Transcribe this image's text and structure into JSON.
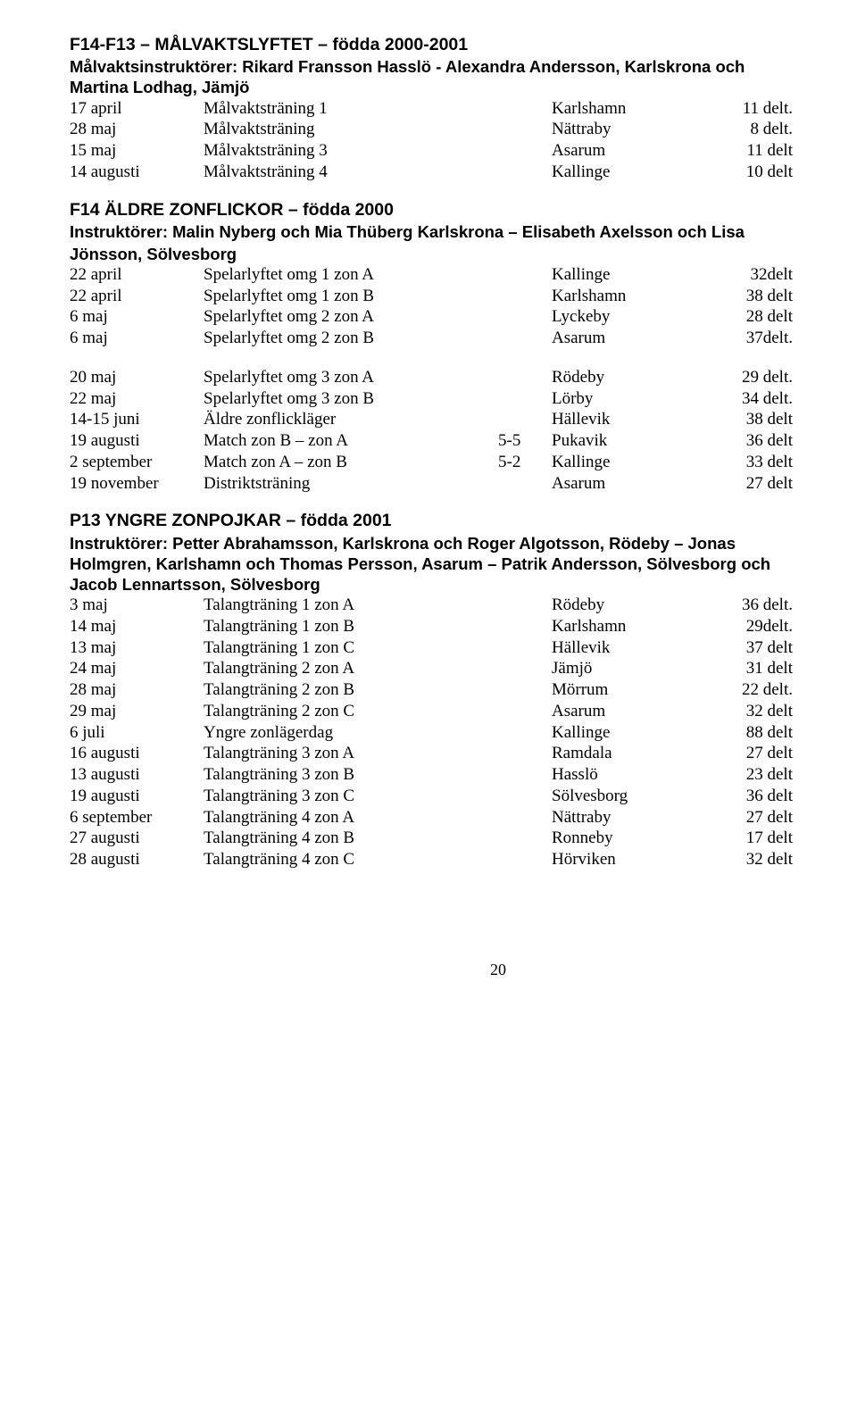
{
  "s1": {
    "title": "F14-F13 – MÅLVAKTSLYFTET – födda 2000-2001",
    "subtitle1": "Målvaktsinstruktörer: Rikard Fransson Hasslö - Alexandra Andersson, Karlskrona och",
    "subtitle2": "Martina Lodhag, Jämjö",
    "rows": [
      {
        "d": "17 april",
        "a": "Målvaktsträning 1",
        "s": "",
        "l": "Karlshamn",
        "r": "11 delt."
      },
      {
        "d": "28 maj",
        "a": "Målvaktsträning",
        "s": "",
        "l": "Nättraby",
        "r": "8  delt."
      },
      {
        "d": "15 maj",
        "a": "Målvaktsträning 3",
        "s": "",
        "l": "Asarum",
        "r": "11 delt"
      },
      {
        "d": "14 augusti",
        "a": "Målvaktsträning 4",
        "s": "",
        "l": "Kallinge",
        "r": "10 delt"
      }
    ]
  },
  "s2": {
    "title": "F14 ÄLDRE ZONFLICKOR – födda 2000",
    "subline1": "Instruktörer: Malin Nyberg  och Mia Thüberg Karlskrona  – Elisabeth Axelsson och Lisa",
    "subline2": "Jönsson, Sölvesborg",
    "rowsA": [
      {
        "d": "22 april",
        "a": "Spelarlyftet omg 1 zon A",
        "l": "Kallinge",
        "r": "32delt"
      },
      {
        "d": "22 april",
        "a": "Spelarlyftet omg 1 zon B",
        "l": "Karlshamn",
        "r": "38 delt"
      },
      {
        "d": "6 maj",
        "a": "Spelarlyftet omg 2 zon A",
        "l": "Lyckeby",
        "r": "28 delt"
      },
      {
        "d": "6 maj",
        "a": "Spelarlyftet omg 2 zon B",
        "l": "Asarum",
        "r": "37delt."
      }
    ],
    "rowsB": [
      {
        "d": "20 maj",
        "a": "Spelarlyftet omg 3 zon A",
        "s": "",
        "l": "Rödeby",
        "r": "29 delt."
      },
      {
        "d": "22 maj",
        "a": "Spelarlyftet omg 3 zon B",
        "s": "",
        "l": "Lörby",
        "r": "34 delt."
      },
      {
        "d": "14-15 juni",
        "a": "Äldre zonflickläger",
        "s": "",
        "l": "Hällevik",
        "r": "38 delt"
      },
      {
        "d": "19 augusti",
        "a": "Match zon B – zon A",
        "s": "5-5",
        "l": "Pukavik",
        "r": "36 delt"
      },
      {
        "d": "2 september",
        "a": "Match zon A – zon B",
        "s": "5-2",
        "l": "Kallinge",
        "r": "33  delt"
      },
      {
        "d": "19 november",
        "a": "Distriktsträning",
        "s": "",
        "l": "Asarum",
        "r": "27 delt"
      }
    ]
  },
  "s3": {
    "title": "P13 YNGRE ZONPOJKAR – födda 2001",
    "subline1": "Instruktörer: Petter Abrahamsson, Karlskrona och Roger Algotsson, Rödeby – Jonas",
    "subline2": "Holmgren, Karlshamn och Thomas Persson, Asarum – Patrik Andersson, Sölvesborg och",
    "subline3": "Jacob Lennartsson, Sölvesborg",
    "rows": [
      {
        "d": "3 maj",
        "a": "Talangträning 1 zon A",
        "l": "Rödeby",
        "r": "36 delt."
      },
      {
        "d": "14 maj",
        "a": "Talangträning 1 zon B",
        "l": "Karlshamn",
        "r": "29delt."
      },
      {
        "d": "13 maj",
        "a": "Talangträning 1 zon C",
        "l": "Hällevik",
        "r": "37 delt"
      },
      {
        "d": "24 maj",
        "a": "Talangträning 2 zon A",
        "l": "Jämjö",
        "r": "31 delt"
      },
      {
        "d": "28 maj",
        "a": "Talangträning 2 zon B",
        "l": "Mörrum",
        "r": "22 delt."
      },
      {
        "d": "29 maj",
        "a": "Talangträning 2 zon C",
        "l": "Asarum",
        "r": "32 delt"
      },
      {
        "d": "6 juli",
        "a": "Yngre zonlägerdag",
        "l": "Kallinge",
        "r": "88 delt"
      },
      {
        "d": "16 augusti",
        "a": "Talangträning 3 zon A",
        "l": "Ramdala",
        "r": "27 delt"
      },
      {
        "d": "13 augusti",
        "a": "Talangträning 3 zon B",
        "l": "Hasslö",
        "r": "23 delt"
      },
      {
        "d": "19 augusti",
        "a": "Talangträning 3 zon C",
        "l": "Sölvesborg",
        "r": "36 delt"
      },
      {
        "d": "6 september",
        "a": "Talangträning 4 zon A",
        "l": "Nättraby",
        "r": "27 delt"
      },
      {
        "d": "27 augusti",
        "a": "Talangträning 4 zon B",
        "l": "Ronneby",
        "r": "17 delt"
      },
      {
        "d": "28 augusti",
        "a": "Talangträning 4 zon C",
        "l": "Hörviken",
        "r": "32 delt"
      }
    ]
  },
  "page": "20"
}
